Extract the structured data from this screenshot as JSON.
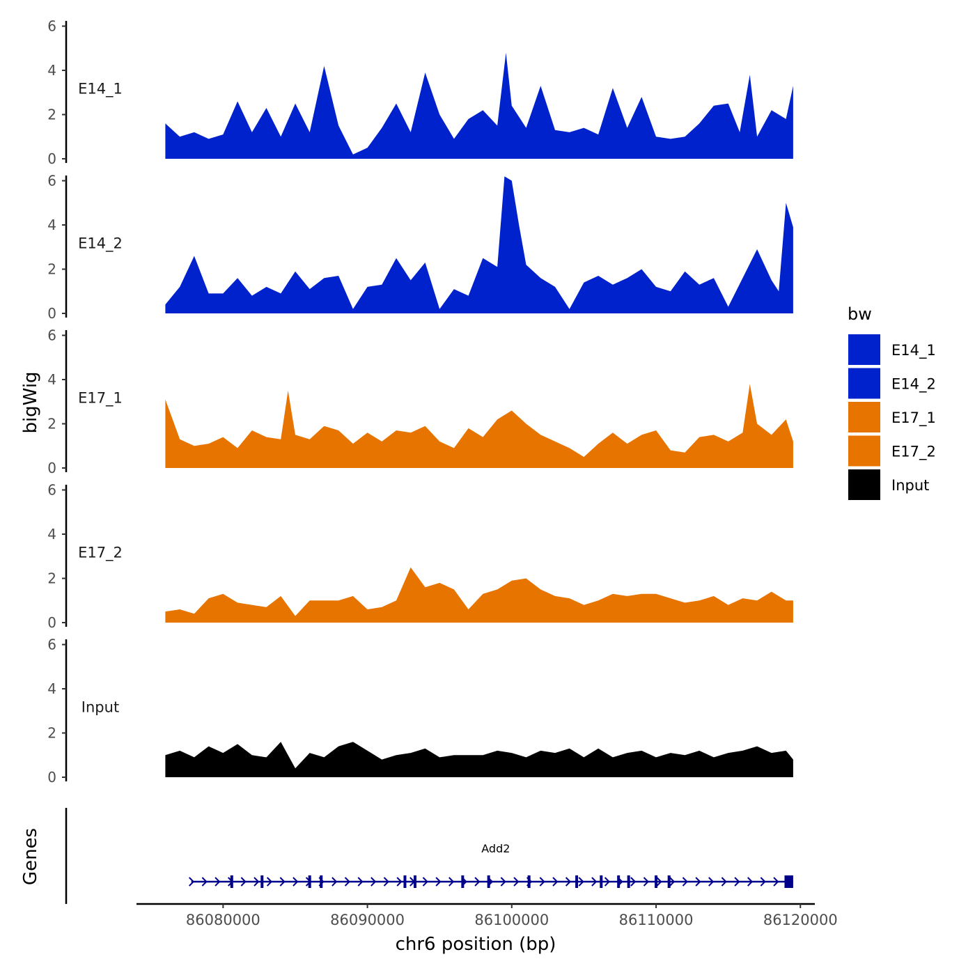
{
  "chart_data": {
    "type": "area",
    "title": "",
    "xlabel": "chr6 position (bp)",
    "ylabel": "bigWig",
    "genes_label": "Genes",
    "xlim": [
      86074000,
      86121000
    ],
    "ylim": [
      0,
      6.3
    ],
    "x_ticks": [
      86080000,
      86090000,
      86100000,
      86110000,
      86120000
    ],
    "x_tick_labels": [
      "86080000",
      "86090000",
      "86100000",
      "86110000",
      "86120000"
    ],
    "y_ticks": [
      0,
      2,
      4,
      6
    ],
    "y_tick_labels": [
      "0",
      "2",
      "4",
      "6"
    ],
    "x_range": [
      86076000,
      86119500
    ],
    "legend": {
      "title": "bw",
      "position": "right",
      "entries": [
        {
          "label": "E14_1",
          "color": "#0022CC"
        },
        {
          "label": "E14_2",
          "color": "#0022CC"
        },
        {
          "label": "E17_1",
          "color": "#E87400"
        },
        {
          "label": "E17_2",
          "color": "#E87400"
        },
        {
          "label": "Input",
          "color": "#000000"
        }
      ]
    },
    "series": [
      {
        "name": "E14_1",
        "color": "#0022CC",
        "x": [
          86076000,
          86077000,
          86078000,
          86079000,
          86080000,
          86081000,
          86082000,
          86083000,
          86084000,
          86085000,
          86086000,
          86087000,
          86088000,
          86089000,
          86090000,
          86091000,
          86092000,
          86093000,
          86094000,
          86095000,
          86096000,
          86097000,
          86098000,
          86099000,
          86099600,
          86100000,
          86101000,
          86102000,
          86103000,
          86104000,
          86105000,
          86106000,
          86107000,
          86108000,
          86109000,
          86110000,
          86111000,
          86112000,
          86113000,
          86114000,
          86115000,
          86115800,
          86116500,
          86117000,
          86118000,
          86119000,
          86119500
        ],
        "values": [
          1.6,
          1.0,
          1.2,
          0.9,
          1.1,
          2.6,
          1.2,
          2.3,
          1.0,
          2.5,
          1.2,
          4.2,
          1.5,
          0.2,
          0.5,
          1.4,
          2.5,
          1.2,
          3.9,
          2.0,
          0.9,
          1.8,
          2.2,
          1.5,
          4.8,
          2.4,
          1.4,
          3.3,
          1.3,
          1.2,
          1.4,
          1.1,
          3.2,
          1.4,
          2.8,
          1.0,
          0.9,
          1.0,
          1.6,
          2.4,
          2.5,
          1.2,
          3.8,
          1.0,
          2.2,
          1.8,
          3.3
        ]
      },
      {
        "name": "E14_2",
        "color": "#0022CC",
        "x": [
          86076000,
          86077000,
          86078000,
          86079000,
          86080000,
          86081000,
          86082000,
          86083000,
          86084000,
          86085000,
          86086000,
          86087000,
          86088000,
          86089000,
          86090000,
          86091000,
          86092000,
          86093000,
          86094000,
          86095000,
          86096000,
          86097000,
          86098000,
          86099000,
          86099500,
          86100000,
          86100500,
          86101000,
          86102000,
          86103000,
          86104000,
          86105000,
          86106000,
          86107000,
          86108000,
          86109000,
          86110000,
          86111000,
          86112000,
          86113000,
          86114000,
          86115000,
          86116000,
          86117000,
          86118000,
          86118500,
          86119000,
          86119500
        ],
        "values": [
          0.4,
          1.2,
          2.6,
          0.9,
          0.9,
          1.6,
          0.8,
          1.2,
          0.9,
          1.9,
          1.1,
          1.6,
          1.7,
          0.2,
          1.2,
          1.3,
          2.5,
          1.5,
          2.3,
          0.2,
          1.1,
          0.8,
          2.5,
          2.1,
          6.2,
          6.0,
          4.0,
          2.2,
          1.6,
          1.2,
          0.2,
          1.4,
          1.7,
          1.3,
          1.6,
          2.0,
          1.2,
          1.0,
          1.9,
          1.3,
          1.6,
          0.3,
          1.6,
          2.9,
          1.5,
          1.0,
          5.0,
          3.9
        ]
      },
      {
        "name": "E17_1",
        "color": "#E87400",
        "x": [
          86076000,
          86077000,
          86078000,
          86079000,
          86080000,
          86081000,
          86082000,
          86083000,
          86084000,
          86084500,
          86085000,
          86086000,
          86087000,
          86088000,
          86089000,
          86090000,
          86091000,
          86092000,
          86093000,
          86094000,
          86095000,
          86096000,
          86097000,
          86098000,
          86099000,
          86100000,
          86101000,
          86102000,
          86103000,
          86104000,
          86105000,
          86106000,
          86107000,
          86108000,
          86109000,
          86110000,
          86111000,
          86112000,
          86113000,
          86114000,
          86115000,
          86116000,
          86116500,
          86117000,
          86118000,
          86119000,
          86119500
        ],
        "values": [
          3.1,
          1.3,
          1.0,
          1.1,
          1.4,
          0.9,
          1.7,
          1.4,
          1.3,
          3.5,
          1.5,
          1.3,
          1.9,
          1.7,
          1.1,
          1.6,
          1.2,
          1.7,
          1.6,
          1.9,
          1.2,
          0.9,
          1.8,
          1.4,
          2.2,
          2.6,
          2.0,
          1.5,
          1.2,
          0.9,
          0.5,
          1.1,
          1.6,
          1.1,
          1.5,
          1.7,
          0.8,
          0.7,
          1.4,
          1.5,
          1.2,
          1.6,
          3.8,
          2.0,
          1.5,
          2.2,
          1.2
        ]
      },
      {
        "name": "E17_2",
        "color": "#E87400",
        "x": [
          86076000,
          86077000,
          86078000,
          86079000,
          86080000,
          86081000,
          86082000,
          86083000,
          86084000,
          86085000,
          86086000,
          86087000,
          86088000,
          86089000,
          86090000,
          86091000,
          86092000,
          86093000,
          86094000,
          86095000,
          86096000,
          86097000,
          86098000,
          86099000,
          86100000,
          86101000,
          86102000,
          86103000,
          86104000,
          86105000,
          86106000,
          86107000,
          86108000,
          86109000,
          86110000,
          86111000,
          86112000,
          86113000,
          86114000,
          86115000,
          86116000,
          86117000,
          86118000,
          86119000,
          86119500
        ],
        "values": [
          0.5,
          0.6,
          0.4,
          1.1,
          1.3,
          0.9,
          0.8,
          0.7,
          1.2,
          0.3,
          1.0,
          1.0,
          1.0,
          1.2,
          0.6,
          0.7,
          1.0,
          2.5,
          1.6,
          1.8,
          1.5,
          0.6,
          1.3,
          1.5,
          1.9,
          2.0,
          1.5,
          1.2,
          1.1,
          0.8,
          1.0,
          1.3,
          1.2,
          1.3,
          1.3,
          1.1,
          0.9,
          1.0,
          1.2,
          0.8,
          1.1,
          1.0,
          1.4,
          1.0,
          1.0
        ]
      },
      {
        "name": "Input",
        "color": "#000000",
        "x": [
          86076000,
          86077000,
          86078000,
          86079000,
          86080000,
          86081000,
          86082000,
          86083000,
          86084000,
          86085000,
          86086000,
          86087000,
          86088000,
          86089000,
          86090000,
          86091000,
          86092000,
          86093000,
          86094000,
          86095000,
          86096000,
          86097000,
          86098000,
          86099000,
          86100000,
          86101000,
          86102000,
          86103000,
          86104000,
          86105000,
          86106000,
          86107000,
          86108000,
          86109000,
          86110000,
          86111000,
          86112000,
          86113000,
          86114000,
          86115000,
          86116000,
          86117000,
          86118000,
          86119000,
          86119500
        ],
        "values": [
          1.0,
          1.2,
          0.9,
          1.4,
          1.1,
          1.5,
          1.0,
          0.9,
          1.6,
          0.4,
          1.1,
          0.9,
          1.4,
          1.6,
          1.2,
          0.8,
          1.0,
          1.1,
          1.3,
          0.9,
          1.0,
          1.0,
          1.0,
          1.2,
          1.1,
          0.9,
          1.2,
          1.1,
          1.3,
          0.9,
          1.3,
          0.9,
          1.1,
          1.2,
          0.9,
          1.1,
          1.0,
          1.2,
          0.9,
          1.1,
          1.2,
          1.4,
          1.1,
          1.2,
          0.8
        ]
      }
    ],
    "gene": {
      "name": "Add2",
      "start": 86077800,
      "end": 86119500,
      "strand": "+",
      "color": "#00008B",
      "exons": [
        86080600,
        86082700,
        86086000,
        86086800,
        86092600,
        86093300,
        86096600,
        86098400,
        86101200,
        86104500,
        86106200,
        86107400,
        86108100,
        86110000,
        86110900
      ],
      "utr": [
        86118900,
        86119500
      ]
    }
  }
}
